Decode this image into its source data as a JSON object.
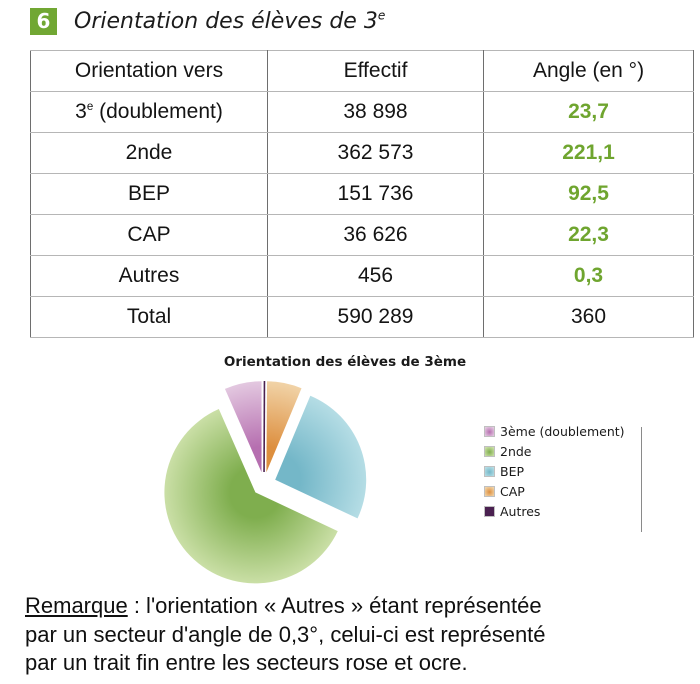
{
  "header": {
    "badge": "6",
    "title_base": "Orientation des élèves de 3",
    "title_sup": "e"
  },
  "colors": {
    "accent_green": "#71a733",
    "angle_value_green": "#6fa52f",
    "autres_line": "#4a2050"
  },
  "table": {
    "col_headers": [
      "Orientation vers",
      "Effectif",
      "Angle (en °)"
    ],
    "rows": [
      {
        "base": "3",
        "sup": "e",
        "rest": " (doublement)",
        "effectif": "38 898",
        "angle": "23,7"
      },
      {
        "base": "2nde",
        "sup": "",
        "rest": "",
        "effectif": "362 573",
        "angle": "221,1"
      },
      {
        "base": "BEP",
        "sup": "",
        "rest": "",
        "effectif": "151 736",
        "angle": "92,5"
      },
      {
        "base": "CAP",
        "sup": "",
        "rest": "",
        "effectif": "36 626",
        "angle": "22,3"
      },
      {
        "base": "Autres",
        "sup": "",
        "rest": "",
        "effectif": "456",
        "angle": "0,3"
      }
    ],
    "total": {
      "label": "Total",
      "effectif": "590 289",
      "angle": "360"
    }
  },
  "chart_data": {
    "type": "pie",
    "title": "Orientation des élèves de 3ème",
    "legend_position": "right",
    "exploded": true,
    "direction": "counterclockwise_from_top",
    "slices": [
      {
        "label": "3ème (doublement)",
        "effectif": 38898,
        "angle_deg": 23.7,
        "inner": "#b66fb0",
        "outer": "#e3c8e0",
        "render": "sector"
      },
      {
        "label": "2nde",
        "effectif": 362573,
        "angle_deg": 221.1,
        "inner": "#7fae4e",
        "outer": "#cadfa6",
        "render": "sector"
      },
      {
        "label": "BEP",
        "effectif": 151736,
        "angle_deg": 92.5,
        "inner": "#74b7c8",
        "outer": "#b5dde5",
        "render": "sector"
      },
      {
        "label": "CAP",
        "effectif": 36626,
        "angle_deg": 22.3,
        "inner": "#dd8f3f",
        "outer": "#f1d3a7",
        "render": "sector"
      },
      {
        "label": "Autres",
        "effectif": 456,
        "angle_deg": 0.3,
        "inner": "#4a2050",
        "outer": "#4a2050",
        "render": "thin-line"
      }
    ],
    "total": {
      "effectif": 590289,
      "angle_deg": 360
    }
  },
  "remark": {
    "label": "Remarque",
    "line1_rest": " : l'orientation « Autres » étant représentée",
    "line2": "par un secteur d'angle de 0,3°, celui-ci est représenté",
    "line3": "par un trait fin entre les secteurs rose et ocre."
  }
}
